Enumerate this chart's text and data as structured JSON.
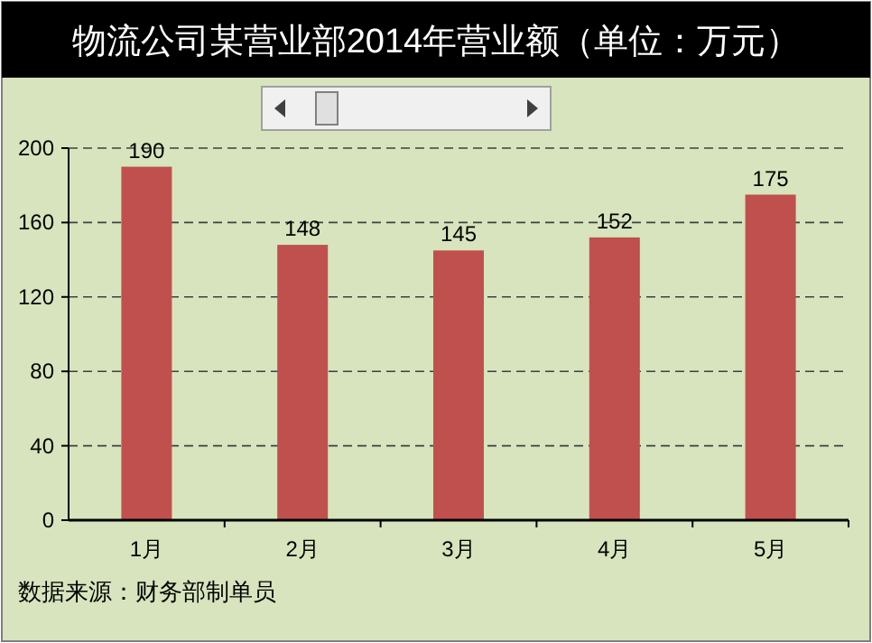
{
  "chart_data": {
    "type": "bar",
    "title": "物流公司某营业部2014年营业额（单位：万元）",
    "categories": [
      "1月",
      "2月",
      "3月",
      "4月",
      "5月"
    ],
    "values": [
      190,
      148,
      145,
      152,
      175
    ],
    "color": "#c0504d",
    "ylim": [
      0,
      200
    ],
    "yticks": [
      0,
      40,
      80,
      120,
      160,
      200
    ],
    "grid": "y",
    "data_labels": true,
    "annotations": [
      "数据来源：财务部制单员"
    ]
  }
}
